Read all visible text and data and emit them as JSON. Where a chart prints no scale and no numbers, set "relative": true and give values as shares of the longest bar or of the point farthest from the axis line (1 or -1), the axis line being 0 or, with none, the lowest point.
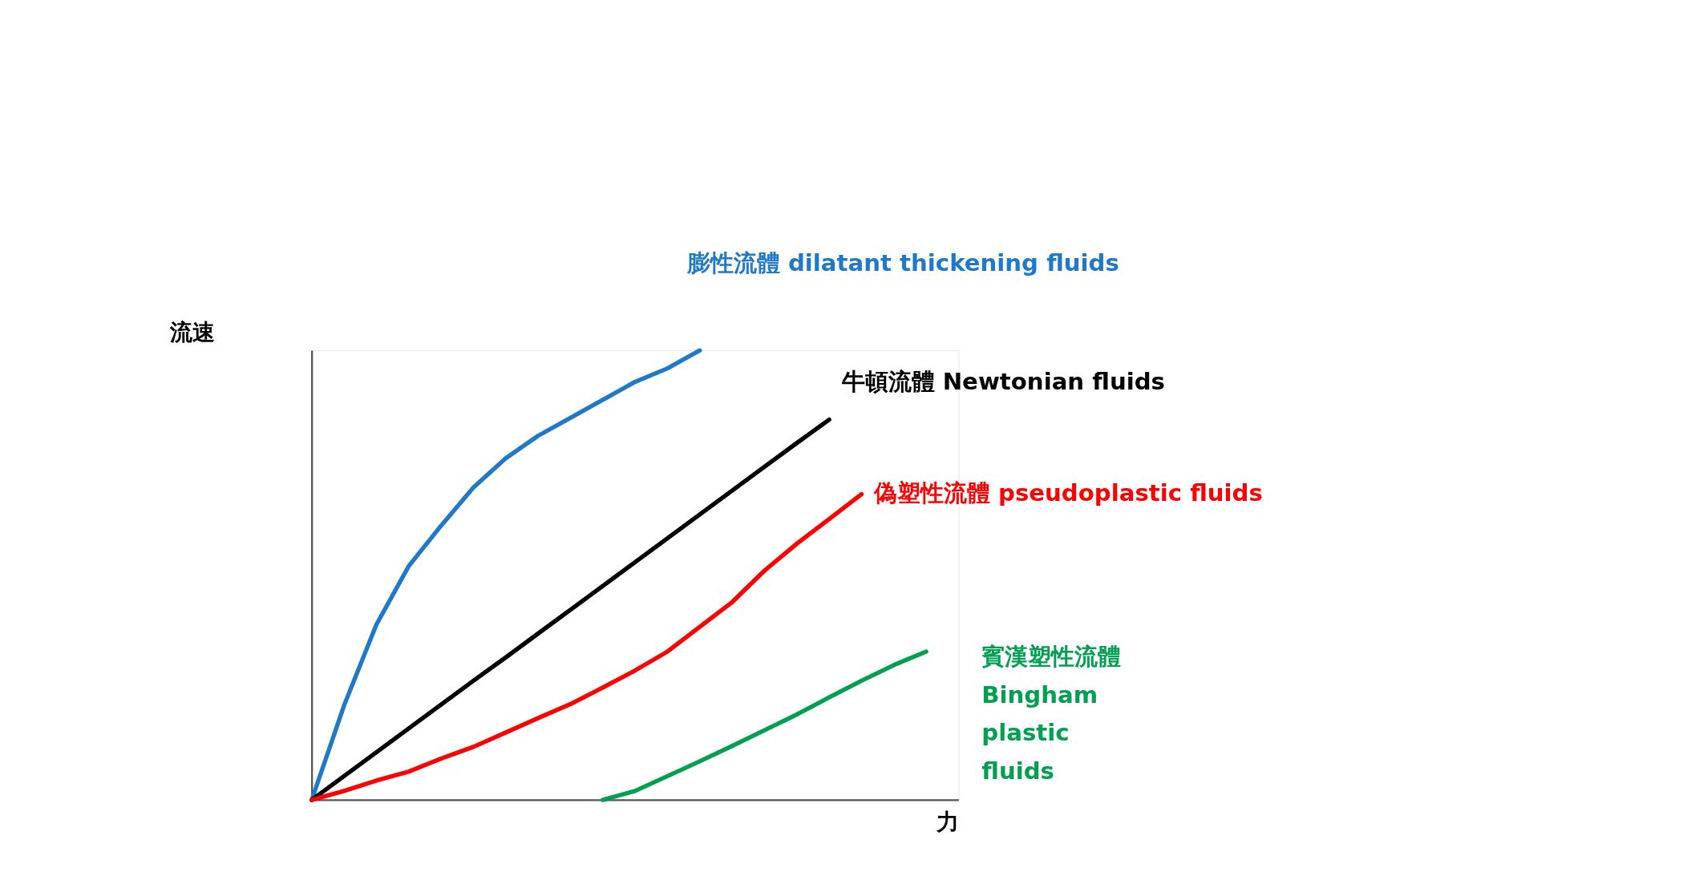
{
  "chart_data": {
    "type": "line",
    "relative": true,
    "xlabel": "力",
    "ylabel": "流速",
    "categories": [
      null,
      null,
      null,
      null,
      null,
      null,
      null,
      null,
      null,
      null,
      null,
      null,
      null,
      null,
      null,
      null,
      null,
      null,
      null,
      null,
      null
    ],
    "series": [
      {
        "name": "膨性流體 dilatant thickening fluids",
        "color": "#1f78c8",
        "values": [
          0,
          0.21,
          0.39,
          0.52,
          0.61,
          0.695,
          0.76,
          0.81,
          0.85,
          0.89,
          0.93,
          0.96,
          1,
          null,
          null,
          null,
          null,
          null,
          null,
          null,
          null
        ]
      },
      {
        "name": "牛頓流體 Newtonian fluids",
        "color": "#000000",
        "values": [
          0,
          0.053,
          0.106,
          0.159,
          0.212,
          0.265,
          0.317,
          0.37,
          0.423,
          0.476,
          0.529,
          0.582,
          0.635,
          0.688,
          0.741,
          0.794,
          0.846,
          null,
          null,
          null,
          null
        ]
      },
      {
        "name": "偽塑性流體 pseudoplastic fluids",
        "color": "#ff0000",
        "values": [
          0,
          0.02,
          0.043,
          0.063,
          0.092,
          0.118,
          0.15,
          0.182,
          0.213,
          0.25,
          0.288,
          0.33,
          0.385,
          0.44,
          0.51,
          0.57,
          0.625,
          0.68,
          null,
          null,
          null
        ]
      },
      {
        "name": "賓漢塑性流體 Bingham plastic fluids",
        "color": "#00a050",
        "values": [
          null,
          null,
          null,
          null,
          null,
          null,
          null,
          null,
          null,
          0,
          0.02,
          0.053,
          0.086,
          0.12,
          0.155,
          0.19,
          0.228,
          0.265,
          0.3,
          0.33,
          null
        ]
      }
    ]
  }
}
